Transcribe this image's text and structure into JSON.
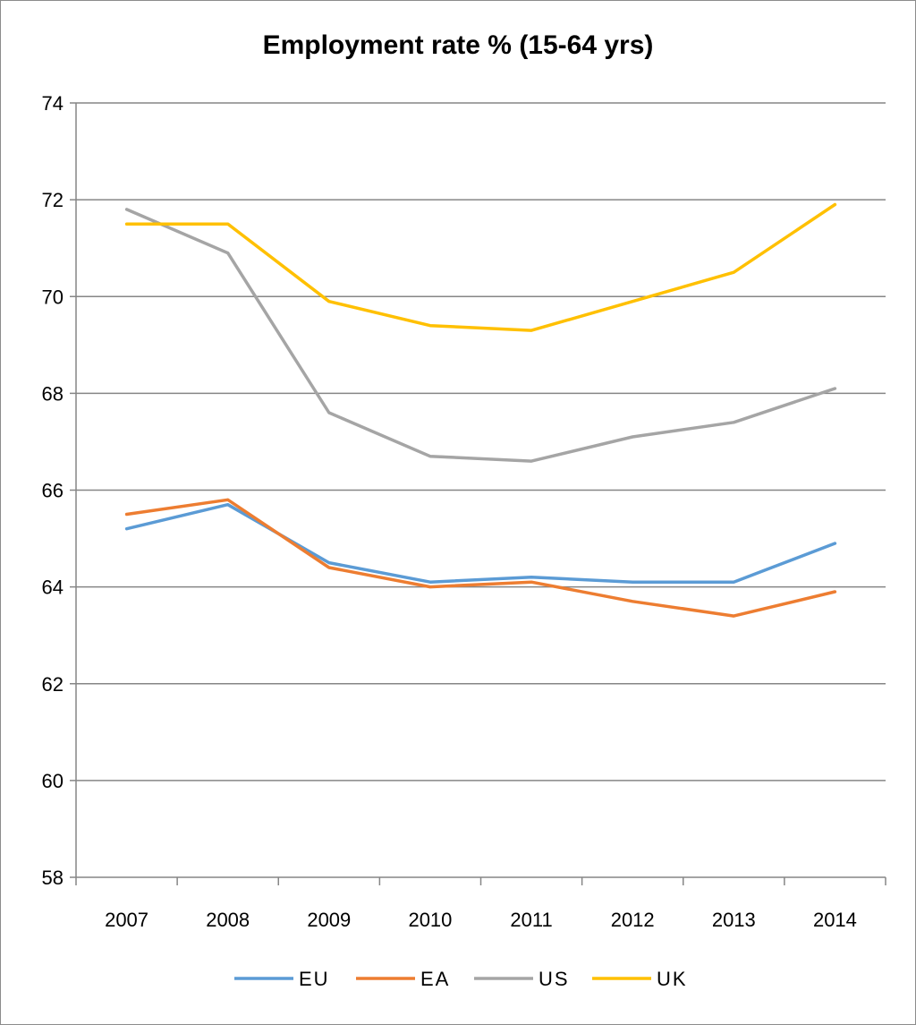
{
  "chart_data": {
    "type": "line",
    "title": "Employment rate % (15-64 yrs)",
    "xlabel": "",
    "ylabel": "",
    "categories": [
      "2007",
      "2008",
      "2009",
      "2010",
      "2011",
      "2012",
      "2013",
      "2014"
    ],
    "ylim": [
      58,
      74
    ],
    "yticks": [
      58,
      60,
      62,
      64,
      66,
      68,
      70,
      72,
      74
    ],
    "ytick_labels": [
      "58",
      "60",
      "62",
      "64",
      "66",
      "68",
      "70",
      "72",
      "74"
    ],
    "grid": true,
    "legend_position": "bottom",
    "series": [
      {
        "name": "EU",
        "color": "#5b9bd5",
        "values": [
          65.2,
          65.7,
          64.5,
          64.1,
          64.2,
          64.1,
          64.1,
          64.9
        ]
      },
      {
        "name": "EA",
        "color": "#ed7d31",
        "values": [
          65.5,
          65.8,
          64.4,
          64.0,
          64.1,
          63.7,
          63.4,
          63.9
        ]
      },
      {
        "name": "US",
        "color": "#a5a5a5",
        "values": [
          71.8,
          70.9,
          67.6,
          66.7,
          66.6,
          67.1,
          67.4,
          68.1
        ]
      },
      {
        "name": "UK",
        "color": "#ffc000",
        "values": [
          71.5,
          71.5,
          69.9,
          69.4,
          69.3,
          69.9,
          70.5,
          71.9
        ]
      }
    ]
  }
}
